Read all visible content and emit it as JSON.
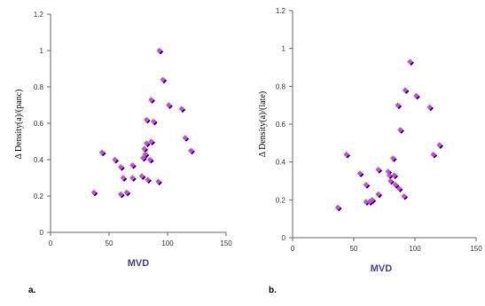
{
  "colors": {
    "marker": "#cc44ee",
    "marker_shadow": "#000000",
    "axis": "#666666",
    "xlabel": "#4a3c8c"
  },
  "chart_data": [
    {
      "type": "scatter",
      "panel_label": "a.",
      "title": "",
      "xlabel": "MVD",
      "ylabel": "Δ Density(a)/(panc)",
      "xlim": [
        0,
        150
      ],
      "ylim": [
        0,
        1.2
      ],
      "xticks": [
        "0",
        "50",
        "100",
        "150"
      ],
      "yticks": [
        "0",
        "0.2",
        "0.4",
        "0.6",
        "0.8",
        "1",
        "1.2"
      ],
      "points": [
        {
          "x": 37,
          "y": 0.22
        },
        {
          "x": 44,
          "y": 0.44
        },
        {
          "x": 55,
          "y": 0.4
        },
        {
          "x": 60,
          "y": 0.36
        },
        {
          "x": 62,
          "y": 0.3
        },
        {
          "x": 60,
          "y": 0.21
        },
        {
          "x": 65,
          "y": 0.22
        },
        {
          "x": 70,
          "y": 0.37
        },
        {
          "x": 70,
          "y": 0.3
        },
        {
          "x": 78,
          "y": 0.31
        },
        {
          "x": 79,
          "y": 0.41
        },
        {
          "x": 80,
          "y": 0.46
        },
        {
          "x": 81,
          "y": 0.43
        },
        {
          "x": 82,
          "y": 0.62
        },
        {
          "x": 82,
          "y": 0.49
        },
        {
          "x": 83,
          "y": 0.29
        },
        {
          "x": 85,
          "y": 0.4
        },
        {
          "x": 86,
          "y": 0.5
        },
        {
          "x": 86,
          "y": 0.73
        },
        {
          "x": 88,
          "y": 0.61
        },
        {
          "x": 92,
          "y": 0.28
        },
        {
          "x": 93,
          "y": 1.0
        },
        {
          "x": 96,
          "y": 0.84
        },
        {
          "x": 101,
          "y": 0.7
        },
        {
          "x": 112,
          "y": 0.68
        },
        {
          "x": 115,
          "y": 0.52
        },
        {
          "x": 120,
          "y": 0.45
        }
      ]
    },
    {
      "type": "scatter",
      "panel_label": "b.",
      "title": "",
      "xlabel": "MVD",
      "ylabel": "Δ Density(a)/(late)",
      "xlim": [
        0,
        150
      ],
      "ylim": [
        0,
        1.2
      ],
      "xticks": [
        "0",
        "50",
        "100",
        "150"
      ],
      "yticks": [
        "0",
        "0.2",
        "0.4",
        "0.6",
        "0.8",
        "1",
        "1.2"
      ],
      "points": [
        {
          "x": 37,
          "y": 0.16
        },
        {
          "x": 44,
          "y": 0.44
        },
        {
          "x": 55,
          "y": 0.34
        },
        {
          "x": 60,
          "y": 0.28
        },
        {
          "x": 60,
          "y": 0.19
        },
        {
          "x": 63,
          "y": 0.19
        },
        {
          "x": 65,
          "y": 0.2
        },
        {
          "x": 70,
          "y": 0.36
        },
        {
          "x": 70,
          "y": 0.23
        },
        {
          "x": 78,
          "y": 0.35
        },
        {
          "x": 79,
          "y": 0.33
        },
        {
          "x": 80,
          "y": 0.3
        },
        {
          "x": 82,
          "y": 0.42
        },
        {
          "x": 83,
          "y": 0.33
        },
        {
          "x": 84,
          "y": 0.28
        },
        {
          "x": 86,
          "y": 0.7
        },
        {
          "x": 87,
          "y": 0.26
        },
        {
          "x": 88,
          "y": 0.57
        },
        {
          "x": 91,
          "y": 0.22
        },
        {
          "x": 92,
          "y": 0.78
        },
        {
          "x": 96,
          "y": 0.93
        },
        {
          "x": 101,
          "y": 0.75
        },
        {
          "x": 112,
          "y": 0.69
        },
        {
          "x": 115,
          "y": 0.44
        },
        {
          "x": 120,
          "y": 0.49
        }
      ]
    }
  ]
}
